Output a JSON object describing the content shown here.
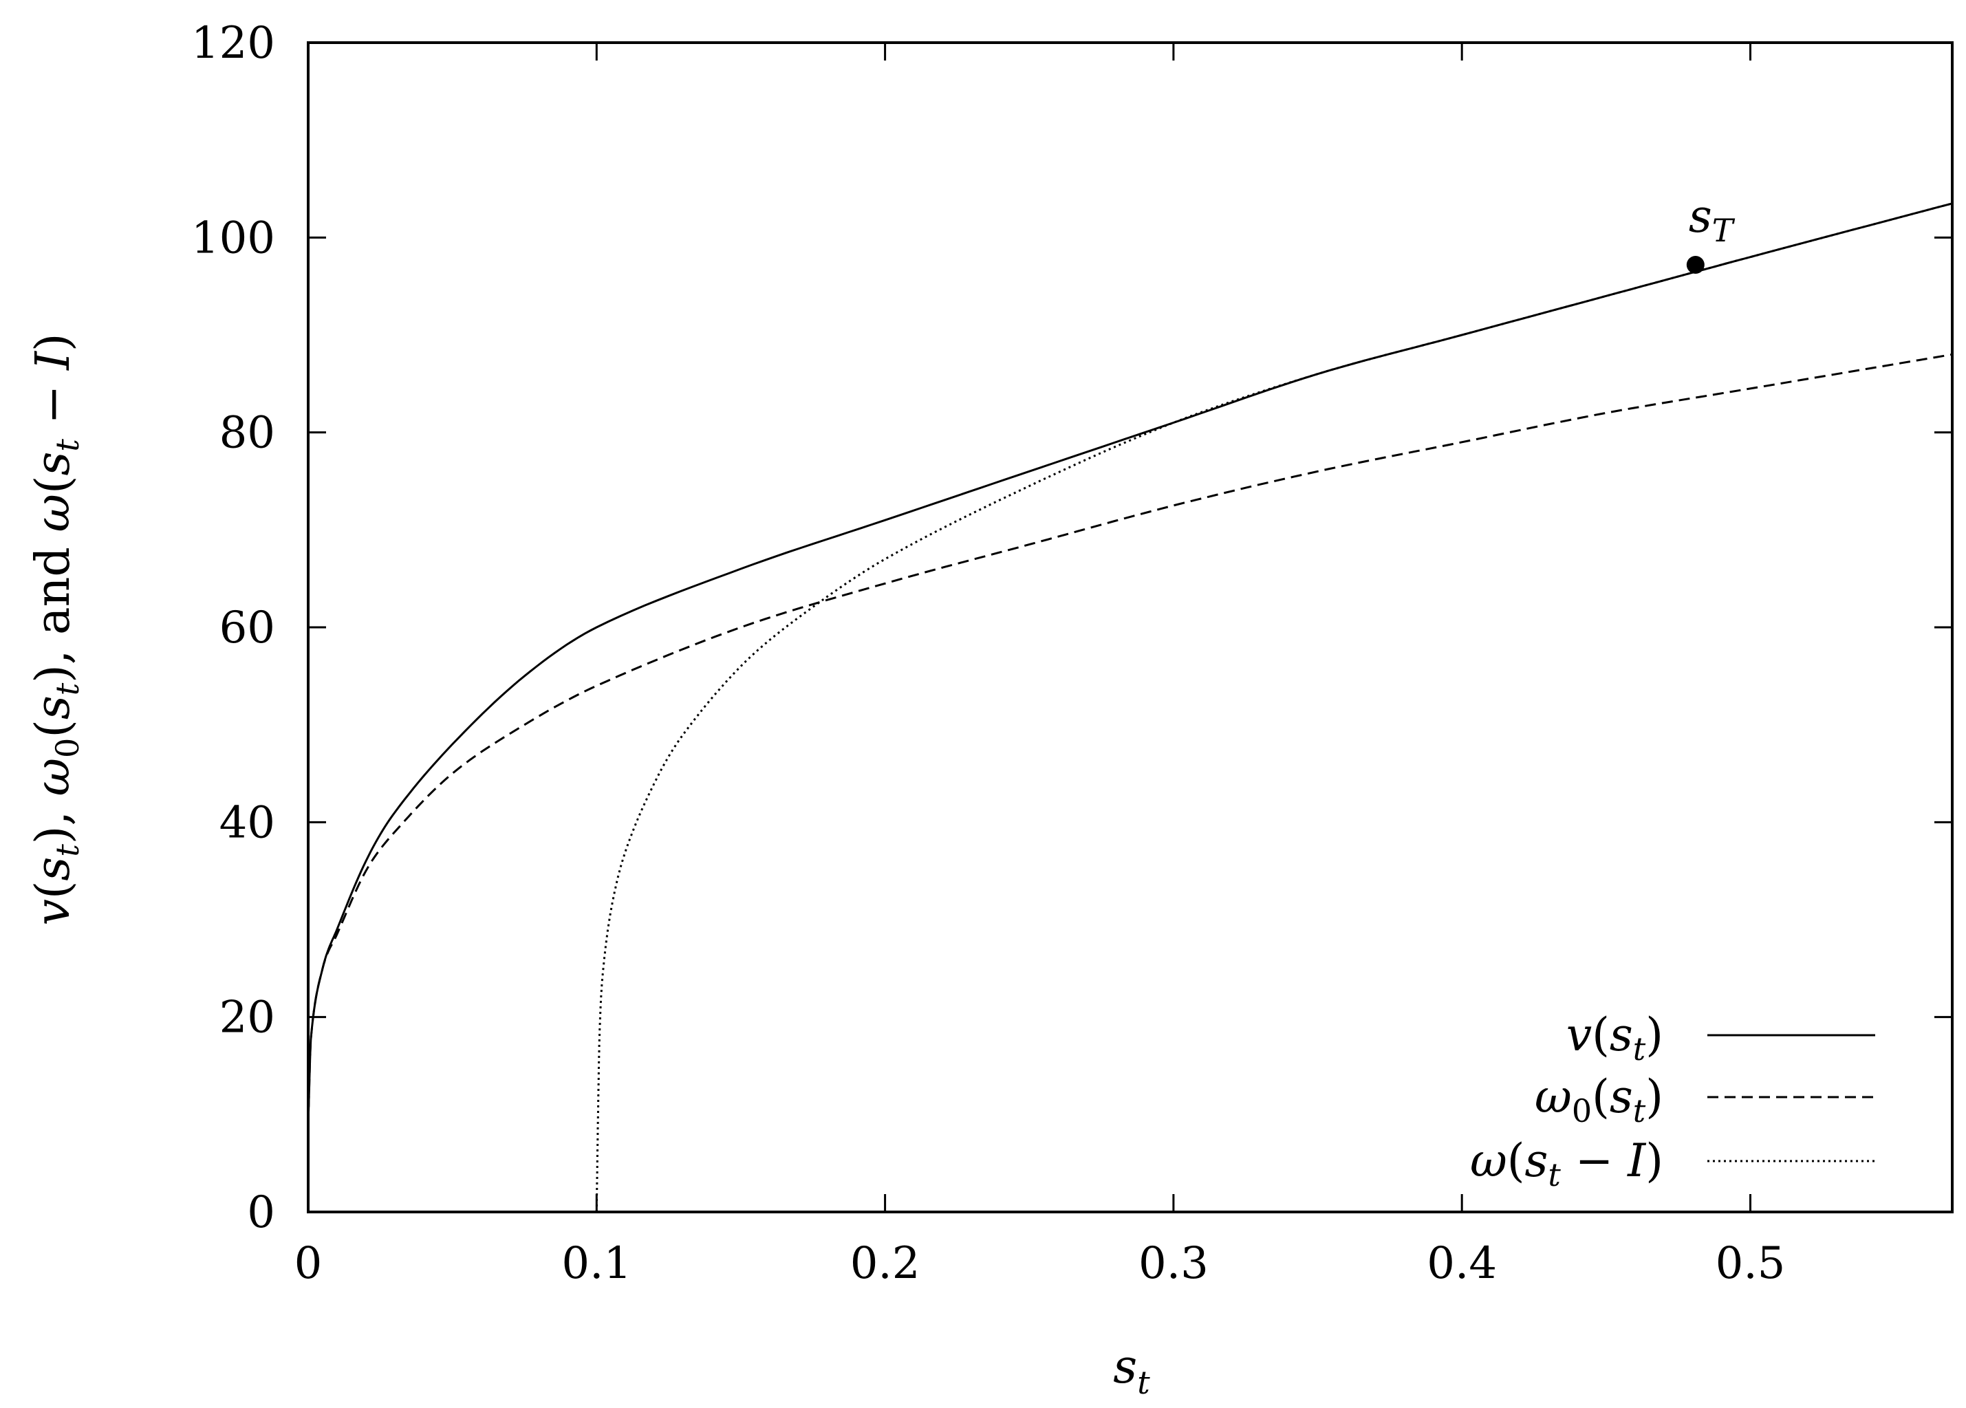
{
  "chart_data": {
    "type": "line",
    "title": "",
    "xlabel": "s_t",
    "ylabel": "v(s_t), ω0(s_t), and ω(s_t − I)",
    "xlim": [
      0,
      0.57
    ],
    "ylim": [
      0,
      120
    ],
    "x_ticks": [
      0,
      0.1,
      0.2,
      0.3,
      0.4,
      0.5
    ],
    "x_tick_labels": [
      "0",
      "0.1",
      "0.2",
      "0.3",
      "0.4",
      "0.5"
    ],
    "y_ticks": [
      0,
      20,
      40,
      60,
      80,
      100,
      120
    ],
    "y_tick_labels": [
      "0",
      "20",
      "40",
      "60",
      "80",
      "100",
      "120"
    ],
    "grid": false,
    "legend_position": "bottom-right",
    "series": [
      {
        "name": "v(s_t)",
        "style": "solid",
        "x": [
          0,
          0.001,
          0.005,
          0.01,
          0.02,
          0.03,
          0.05,
          0.075,
          0.1,
          0.15,
          0.2,
          0.25,
          0.3,
          0.35,
          0.4,
          0.45,
          0.5,
          0.57
        ],
        "y": [
          9,
          18,
          25,
          29,
          36,
          41,
          48,
          55,
          60,
          66,
          71,
          76,
          81,
          86,
          90,
          94,
          98,
          103.5
        ]
      },
      {
        "name": "ω0(s_t)",
        "style": "dashed",
        "x": [
          0,
          0.001,
          0.005,
          0.01,
          0.02,
          0.03,
          0.05,
          0.075,
          0.1,
          0.15,
          0.2,
          0.25,
          0.3,
          0.35,
          0.4,
          0.45,
          0.5,
          0.57
        ],
        "y": [
          9,
          18,
          25,
          28.5,
          35,
          39,
          45,
          50,
          54,
          60,
          64.5,
          68.5,
          72.5,
          76,
          79,
          82,
          84.5,
          88
        ]
      },
      {
        "name": "ω(s_t − I)",
        "style": "dotted",
        "x": [
          0.1,
          0.1005,
          0.101,
          0.102,
          0.105,
          0.11,
          0.12,
          0.13,
          0.15,
          0.17,
          0.2,
          0.25,
          0.3,
          0.35,
          0.4,
          0.45,
          0.5,
          0.57
        ],
        "y": [
          0,
          10,
          18,
          24,
          31,
          37,
          44,
          49,
          56,
          61,
          67,
          74.5,
          81,
          86,
          90,
          94,
          98,
          103.5
        ]
      }
    ],
    "annotations": [
      {
        "label": "s_T",
        "x": 0.481,
        "y": 97.2
      }
    ]
  }
}
